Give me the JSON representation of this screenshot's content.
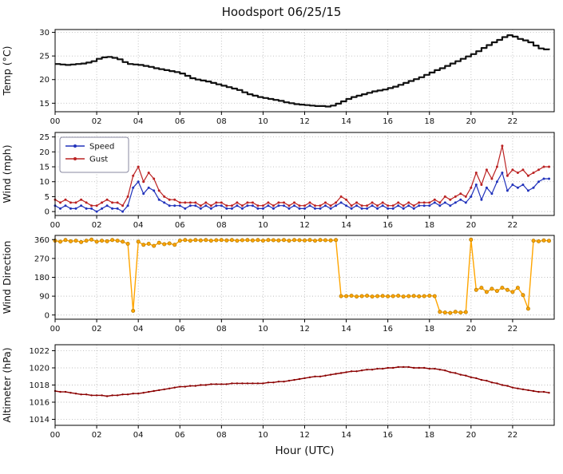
{
  "title": "Hoodsport 06/25/15",
  "xlabel": "Hour (UTC)",
  "x_axis": {
    "start": 0,
    "step_hours": 0.25,
    "count": 96,
    "min": 0,
    "max": 24,
    "ticks": [
      0,
      2,
      4,
      6,
      8,
      10,
      12,
      14,
      16,
      18,
      20,
      22
    ],
    "tick_labels": [
      "00",
      "02",
      "04",
      "06",
      "08",
      "10",
      "12",
      "14",
      "16",
      "18",
      "20",
      "22"
    ]
  },
  "colors": {
    "temp": "#111111",
    "speed": "#2233bb",
    "gust": "#bb2222",
    "direction": "#ffa500",
    "direction_edge": "#b87d00",
    "altimeter": "#8b0000"
  },
  "chart_data": [
    {
      "type": "line",
      "name": "temperature",
      "ylabel": "Temp (°C)",
      "ylim": [
        13.2,
        30.6
      ],
      "yticks": [
        15,
        20,
        25,
        30
      ],
      "grid": true,
      "series": [
        {
          "name": "Temp",
          "color": "#111111",
          "line_width": 2.2,
          "step": true,
          "marker": false,
          "values": [
            23.3,
            23.2,
            23.1,
            23.2,
            23.3,
            23.4,
            23.6,
            23.9,
            24.4,
            24.7,
            24.8,
            24.6,
            24.3,
            23.7,
            23.3,
            23.2,
            23.1,
            22.9,
            22.7,
            22.4,
            22.2,
            22.0,
            21.8,
            21.6,
            21.3,
            20.8,
            20.3,
            20.0,
            19.8,
            19.6,
            19.3,
            19.0,
            18.7,
            18.4,
            18.1,
            17.8,
            17.3,
            16.9,
            16.6,
            16.3,
            16.1,
            15.9,
            15.7,
            15.5,
            15.2,
            15.0,
            14.8,
            14.7,
            14.6,
            14.5,
            14.4,
            14.4,
            14.3,
            14.5,
            14.9,
            15.4,
            15.9,
            16.3,
            16.6,
            16.9,
            17.2,
            17.5,
            17.7,
            17.9,
            18.2,
            18.5,
            18.9,
            19.3,
            19.7,
            20.1,
            20.5,
            21.0,
            21.5,
            22.0,
            22.4,
            22.9,
            23.4,
            23.9,
            24.4,
            24.9,
            25.4,
            26.0,
            26.7,
            27.3,
            27.9,
            28.4,
            29.0,
            29.4,
            29.1,
            28.6,
            28.3,
            27.9,
            27.2,
            26.6,
            26.4,
            26.6
          ]
        }
      ]
    },
    {
      "type": "line",
      "name": "wind",
      "ylabel": "Wind (mph)",
      "ylim": [
        -1.3,
        26.5
      ],
      "yticks": [
        0,
        5,
        10,
        15,
        20,
        25
      ],
      "grid": true,
      "legend": {
        "position": "top-left",
        "entries": [
          "Speed",
          "Gust"
        ]
      },
      "series": [
        {
          "name": "Speed",
          "color": "#2233bb",
          "line_width": 1.2,
          "marker": true,
          "marker_size": 1.5,
          "values": [
            2,
            1,
            2,
            1,
            1,
            2,
            1,
            1,
            0,
            1,
            2,
            1,
            1,
            0,
            2,
            8,
            10,
            6,
            8,
            7,
            4,
            3,
            2,
            2,
            2,
            1,
            2,
            2,
            1,
            2,
            1,
            2,
            2,
            1,
            1,
            2,
            1,
            2,
            2,
            1,
            1,
            2,
            1,
            2,
            2,
            1,
            2,
            1,
            1,
            2,
            1,
            1,
            2,
            1,
            2,
            3,
            2,
            1,
            2,
            1,
            1,
            2,
            1,
            2,
            1,
            1,
            2,
            1,
            2,
            1,
            2,
            2,
            2,
            3,
            2,
            3,
            2,
            3,
            4,
            3,
            5,
            9,
            4,
            8,
            6,
            10,
            13,
            7,
            9,
            8,
            9,
            7,
            8,
            10,
            11,
            11
          ]
        },
        {
          "name": "Gust",
          "color": "#bb2222",
          "line_width": 1.2,
          "marker": true,
          "marker_size": 1.5,
          "values": [
            4,
            3,
            4,
            3,
            3,
            4,
            3,
            2,
            2,
            3,
            4,
            3,
            3,
            2,
            5,
            12,
            15,
            10,
            13,
            11,
            7,
            5,
            4,
            4,
            3,
            3,
            3,
            3,
            2,
            3,
            2,
            3,
            3,
            2,
            2,
            3,
            2,
            3,
            3,
            2,
            2,
            3,
            2,
            3,
            3,
            2,
            3,
            2,
            2,
            3,
            2,
            2,
            3,
            2,
            3,
            5,
            4,
            2,
            3,
            2,
            2,
            3,
            2,
            3,
            2,
            2,
            3,
            2,
            3,
            2,
            3,
            3,
            3,
            4,
            3,
            5,
            4,
            5,
            6,
            5,
            8,
            13,
            9,
            14,
            11,
            15,
            22,
            12,
            14,
            13,
            14,
            12,
            13,
            14,
            15,
            15
          ]
        }
      ]
    },
    {
      "type": "line",
      "name": "wind-direction",
      "ylabel": "Wind Direction",
      "ylim": [
        -20,
        380
      ],
      "yticks": [
        0,
        90,
        180,
        270,
        360
      ],
      "grid": true,
      "series": [
        {
          "name": "Direction",
          "color": "#ffa500",
          "line_width": 1.4,
          "marker": true,
          "marker_size": 2.1,
          "marker_edge": "#b87d00",
          "values": [
            355,
            350,
            358,
            352,
            355,
            348,
            355,
            360,
            350,
            355,
            352,
            358,
            355,
            350,
            340,
            20,
            350,
            335,
            340,
            330,
            345,
            338,
            342,
            335,
            355,
            358,
            355,
            358,
            356,
            358,
            355,
            357,
            358,
            356,
            358,
            355,
            357,
            358,
            356,
            358,
            355,
            358,
            357,
            356,
            358,
            355,
            358,
            357,
            356,
            358,
            355,
            358,
            357,
            356,
            358,
            90,
            90,
            92,
            88,
            90,
            92,
            88,
            90,
            91,
            89,
            90,
            92,
            88,
            90,
            91,
            89,
            90,
            92,
            90,
            15,
            12,
            10,
            15,
            12,
            14,
            360,
            120,
            130,
            110,
            125,
            115,
            130,
            120,
            110,
            130,
            95,
            30,
            355,
            352,
            356,
            354
          ]
        }
      ]
    },
    {
      "type": "line",
      "name": "altimeter",
      "ylabel": "Altimeter (hPa)",
      "ylim": [
        1013.3,
        1022.7
      ],
      "yticks": [
        1014,
        1016,
        1018,
        1020,
        1022
      ],
      "grid": true,
      "series": [
        {
          "name": "Altimeter",
          "color": "#8b0000",
          "line_width": 1.4,
          "marker": true,
          "marker_size": 1.2,
          "values": [
            1017.3,
            1017.2,
            1017.2,
            1017.1,
            1017.0,
            1016.9,
            1016.9,
            1016.8,
            1016.8,
            1016.8,
            1016.7,
            1016.8,
            1016.8,
            1016.9,
            1016.9,
            1017.0,
            1017.0,
            1017.1,
            1017.2,
            1017.3,
            1017.4,
            1017.5,
            1017.6,
            1017.7,
            1017.8,
            1017.8,
            1017.9,
            1017.9,
            1018.0,
            1018.0,
            1018.1,
            1018.1,
            1018.1,
            1018.1,
            1018.2,
            1018.2,
            1018.2,
            1018.2,
            1018.2,
            1018.2,
            1018.2,
            1018.3,
            1018.3,
            1018.4,
            1018.4,
            1018.5,
            1018.6,
            1018.7,
            1018.8,
            1018.9,
            1019.0,
            1019.0,
            1019.1,
            1019.2,
            1019.3,
            1019.4,
            1019.5,
            1019.6,
            1019.6,
            1019.7,
            1019.8,
            1019.8,
            1019.9,
            1019.9,
            1020.0,
            1020.0,
            1020.1,
            1020.1,
            1020.1,
            1020.0,
            1020.0,
            1020.0,
            1019.9,
            1019.9,
            1019.8,
            1019.7,
            1019.5,
            1019.4,
            1019.2,
            1019.1,
            1018.9,
            1018.8,
            1018.6,
            1018.5,
            1018.3,
            1018.2,
            1018.0,
            1017.9,
            1017.7,
            1017.6,
            1017.5,
            1017.4,
            1017.3,
            1017.2,
            1017.2,
            1017.1
          ]
        }
      ]
    }
  ]
}
